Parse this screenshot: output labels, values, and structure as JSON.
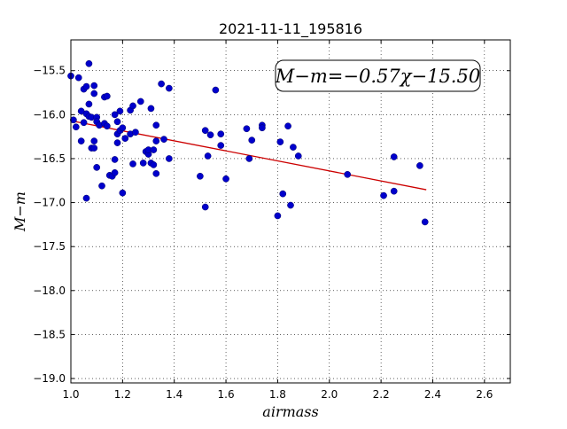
{
  "chart_data": {
    "type": "scatter",
    "title": "2021-11-11_195816",
    "xlabel": "airmass",
    "ylabel": "M−m",
    "xlim": [
      1.0,
      2.7
    ],
    "ylim": [
      -19.05,
      -15.15
    ],
    "y_inverted": true,
    "xticks": [
      1.0,
      1.2,
      1.4,
      1.6,
      1.8,
      2.0,
      2.2,
      2.4,
      2.6
    ],
    "xtick_labels": [
      "1.0",
      "1.2",
      "1.4",
      "1.6",
      "1.8",
      "2.0",
      "2.2",
      "2.4",
      "2.6"
    ],
    "yticks": [
      -15.5,
      -16.0,
      -16.5,
      -17.0,
      -17.5,
      -18.0,
      -18.5,
      -19.0
    ],
    "ytick_labels": [
      "−15.5",
      "−16.0",
      "−16.5",
      "−17.0",
      "−17.5",
      "−18.0",
      "−18.5",
      "−19.0"
    ],
    "grid": true,
    "annotation": "M−m=−0.57χ−15.50",
    "annotation_position": "top-right",
    "fit": {
      "slope": -0.57,
      "intercept": -15.5,
      "x_range": [
        1.0,
        2.375
      ],
      "color": "#cc0000"
    },
    "marker_color": "#0000cc",
    "x": [
      1.0,
      1.01,
      1.02,
      1.03,
      1.04,
      1.04,
      1.05,
      1.05,
      1.06,
      1.06,
      1.06,
      1.07,
      1.07,
      1.07,
      1.08,
      1.08,
      1.09,
      1.09,
      1.09,
      1.09,
      1.1,
      1.1,
      1.1,
      1.11,
      1.12,
      1.13,
      1.13,
      1.14,
      1.14,
      1.15,
      1.16,
      1.17,
      1.17,
      1.17,
      1.18,
      1.18,
      1.18,
      1.19,
      1.19,
      1.2,
      1.2,
      1.21,
      1.23,
      1.23,
      1.24,
      1.24,
      1.25,
      1.27,
      1.28,
      1.29,
      1.3,
      1.3,
      1.31,
      1.31,
      1.32,
      1.32,
      1.33,
      1.33,
      1.33,
      1.35,
      1.36,
      1.38,
      1.38,
      1.5,
      1.52,
      1.52,
      1.53,
      1.54,
      1.56,
      1.58,
      1.58,
      1.6,
      1.68,
      1.69,
      1.7,
      1.74,
      1.74,
      1.8,
      1.81,
      1.82,
      1.84,
      1.85,
      1.86,
      1.88,
      2.07,
      2.21,
      2.25,
      2.25,
      2.35,
      2.37
    ],
    "y": [
      -15.56,
      -16.06,
      -16.14,
      -15.58,
      -15.96,
      -16.3,
      -15.71,
      -16.09,
      -16.95,
      -15.68,
      -15.99,
      -15.42,
      -15.88,
      -16.02,
      -16.38,
      -16.03,
      -15.67,
      -16.38,
      -16.3,
      -15.76,
      -16.03,
      -16.6,
      -16.08,
      -16.12,
      -16.81,
      -15.8,
      -16.1,
      -15.79,
      -16.13,
      -16.69,
      -16.7,
      -16.0,
      -16.51,
      -16.66,
      -16.32,
      -16.08,
      -16.22,
      -15.96,
      -16.18,
      -16.15,
      -16.89,
      -16.27,
      -16.22,
      -15.95,
      -15.9,
      -16.56,
      -16.2,
      -15.85,
      -16.55,
      -16.42,
      -16.45,
      -16.4,
      -15.93,
      -16.55,
      -16.4,
      -16.57,
      -16.67,
      -16.3,
      -16.12,
      -15.65,
      -16.28,
      -15.7,
      -16.5,
      -16.7,
      -17.05,
      -16.18,
      -16.47,
      -16.23,
      -15.72,
      -16.22,
      -16.35,
      -16.73,
      -16.16,
      -16.5,
      -16.29,
      -16.12,
      -16.15,
      -17.15,
      -16.31,
      -16.9,
      -16.13,
      -17.03,
      -16.37,
      -16.47,
      -16.68,
      -16.92,
      -16.48,
      -16.87,
      -16.58,
      -17.22
    ]
  }
}
